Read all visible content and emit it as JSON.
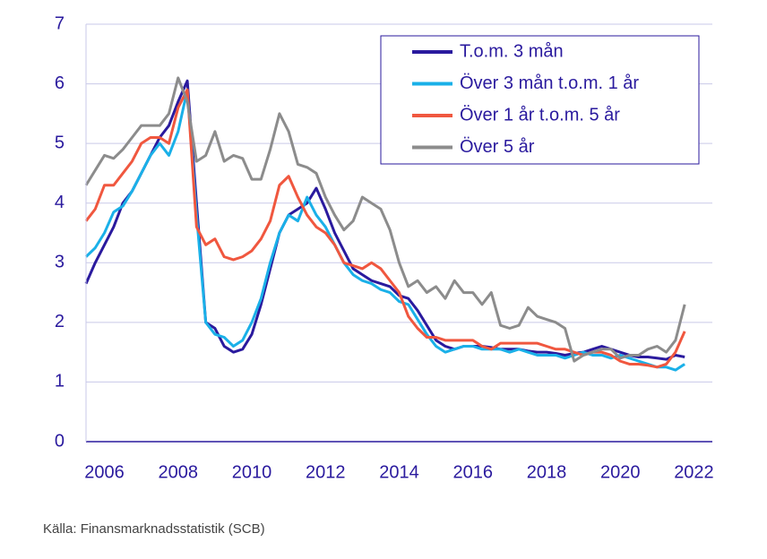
{
  "chart_data": {
    "type": "line",
    "source": "Källa: Finansmarknadsstatistik (SCB)",
    "x": [
      2006,
      2006.25,
      2006.5,
      2006.75,
      2007,
      2007.25,
      2007.5,
      2007.75,
      2008,
      2008.25,
      2008.5,
      2008.75,
      2009,
      2009.25,
      2009.5,
      2009.75,
      2010,
      2010.25,
      2010.5,
      2010.75,
      2011,
      2011.25,
      2011.5,
      2011.75,
      2012,
      2012.25,
      2012.5,
      2012.75,
      2013,
      2013.25,
      2013.5,
      2013.75,
      2014,
      2014.25,
      2014.5,
      2014.75,
      2015,
      2015.25,
      2015.5,
      2015.75,
      2016,
      2016.25,
      2016.5,
      2016.75,
      2017,
      2017.25,
      2017.5,
      2017.75,
      2018,
      2018.25,
      2018.5,
      2018.75,
      2019,
      2019.25,
      2019.5,
      2019.75,
      2020,
      2020.25,
      2020.5,
      2020.75,
      2021,
      2021.25,
      2021.5,
      2021.75,
      2022,
      2022.25
    ],
    "series": [
      {
        "name": "T.o.m. 3 mån",
        "color": "#2a1a9e",
        "values": [
          2.65,
          3.0,
          3.3,
          3.6,
          4.0,
          4.2,
          4.5,
          4.8,
          5.1,
          5.3,
          5.7,
          6.05,
          4.0,
          2.0,
          1.9,
          1.6,
          1.5,
          1.55,
          1.8,
          2.3,
          2.9,
          3.5,
          3.8,
          3.9,
          4.0,
          4.25,
          3.9,
          3.5,
          3.2,
          2.9,
          2.8,
          2.7,
          2.65,
          2.6,
          2.45,
          2.4,
          2.2,
          1.95,
          1.7,
          1.6,
          1.55,
          1.6,
          1.6,
          1.6,
          1.58,
          1.55,
          1.55,
          1.55,
          1.52,
          1.5,
          1.5,
          1.48,
          1.45,
          1.48,
          1.5,
          1.55,
          1.6,
          1.55,
          1.5,
          1.45,
          1.42,
          1.42,
          1.4,
          1.38,
          1.45,
          1.42
        ]
      },
      {
        "name": "Över 3 mån t.o.m. 1 år",
        "color": "#1ab0e8",
        "values": [
          3.1,
          3.25,
          3.5,
          3.85,
          3.95,
          4.2,
          4.5,
          4.8,
          5.0,
          4.8,
          5.2,
          5.9,
          3.8,
          2.0,
          1.8,
          1.75,
          1.6,
          1.7,
          2.0,
          2.4,
          3.0,
          3.5,
          3.8,
          3.7,
          4.1,
          3.8,
          3.6,
          3.3,
          3.0,
          2.8,
          2.7,
          2.65,
          2.55,
          2.5,
          2.35,
          2.3,
          2.05,
          1.8,
          1.6,
          1.5,
          1.55,
          1.6,
          1.6,
          1.55,
          1.55,
          1.55,
          1.5,
          1.55,
          1.5,
          1.45,
          1.45,
          1.45,
          1.4,
          1.45,
          1.5,
          1.45,
          1.45,
          1.4,
          1.45,
          1.4,
          1.35,
          1.3,
          1.25,
          1.25,
          1.2,
          1.3
        ]
      },
      {
        "name": "Över 1 år t.o.m. 5 år",
        "color": "#f0573f",
        "values": [
          3.7,
          3.9,
          4.3,
          4.3,
          4.5,
          4.7,
          5.0,
          5.1,
          5.1,
          5.0,
          5.6,
          5.9,
          3.6,
          3.3,
          3.4,
          3.1,
          3.05,
          3.1,
          3.2,
          3.4,
          3.7,
          4.3,
          4.45,
          4.1,
          3.8,
          3.6,
          3.5,
          3.3,
          3.0,
          2.95,
          2.9,
          3.0,
          2.9,
          2.7,
          2.5,
          2.1,
          1.9,
          1.75,
          1.75,
          1.7,
          1.7,
          1.7,
          1.7,
          1.6,
          1.55,
          1.65,
          1.65,
          1.65,
          1.65,
          1.65,
          1.6,
          1.55,
          1.55,
          1.5,
          1.45,
          1.5,
          1.5,
          1.45,
          1.35,
          1.3,
          1.3,
          1.28,
          1.25,
          1.3,
          1.5,
          1.85
        ]
      },
      {
        "name": "Över 5 år",
        "color": "#8c8c8c",
        "values": [
          4.3,
          4.55,
          4.8,
          4.75,
          4.9,
          5.1,
          5.3,
          5.3,
          5.3,
          5.5,
          6.1,
          5.7,
          4.7,
          4.8,
          5.2,
          4.7,
          4.8,
          4.75,
          4.4,
          4.4,
          4.9,
          5.5,
          5.2,
          4.65,
          4.6,
          4.5,
          4.1,
          3.8,
          3.55,
          3.7,
          4.1,
          4.0,
          3.9,
          3.55,
          3.0,
          2.6,
          2.7,
          2.5,
          2.6,
          2.4,
          2.7,
          2.5,
          2.5,
          2.3,
          2.5,
          1.95,
          1.9,
          1.95,
          2.25,
          2.1,
          2.05,
          2.0,
          1.9,
          1.35,
          1.45,
          1.5,
          1.55,
          1.55,
          1.4,
          1.45,
          1.45,
          1.55,
          1.6,
          1.5,
          1.7,
          2.3
        ]
      }
    ],
    "xlim": [
      2006,
      2023
    ],
    "xticks": [
      {
        "value": 2006.5,
        "label": "2006"
      },
      {
        "value": 2008.5,
        "label": "2008"
      },
      {
        "value": 2010.5,
        "label": "2010"
      },
      {
        "value": 2012.5,
        "label": "2012"
      },
      {
        "value": 2014.5,
        "label": "2014"
      },
      {
        "value": 2016.5,
        "label": "2016"
      },
      {
        "value": 2018.5,
        "label": "2018"
      },
      {
        "value": 2020.5,
        "label": "2020"
      },
      {
        "value": 2022.5,
        "label": "2022"
      }
    ],
    "ylim": [
      0,
      7
    ],
    "yticks": [
      0,
      1,
      2,
      3,
      4,
      5,
      6,
      7
    ],
    "grid": true,
    "legend": "upper right"
  }
}
